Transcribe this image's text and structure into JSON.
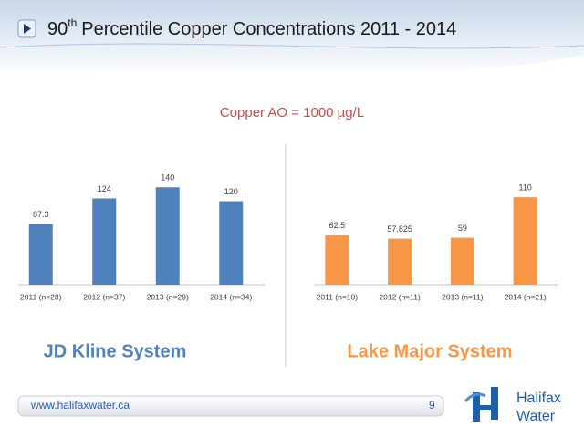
{
  "header": {
    "title_parts": [
      "90",
      "th",
      "Percentile Copper Concentrations 2011 - 2014"
    ]
  },
  "subtitle": "Copper AO = 1000 µg/L",
  "footer": {
    "url": "www.halifaxwater.ca",
    "page": "9",
    "logo": [
      "Halifax",
      "Water"
    ]
  },
  "chart_data": [
    {
      "type": "bar",
      "title": "JD Kline System",
      "color": "#4f81bd",
      "categories": [
        "2011 (n=28)",
        "2012 (n=37)",
        "2013 (n=29)",
        "2014 (n=34)"
      ],
      "values": [
        87.3,
        124,
        140,
        120
      ],
      "ylim": [
        0,
        160
      ]
    },
    {
      "type": "bar",
      "title": "Lake Major System",
      "color": "#f79646",
      "categories": [
        "2011 (n=10)",
        "2012 (n=11)",
        "2013 (n=11)",
        "2014 (n=21)"
      ],
      "values": [
        62.5,
        57.825,
        59,
        110
      ],
      "ylim": [
        0,
        140
      ]
    }
  ]
}
